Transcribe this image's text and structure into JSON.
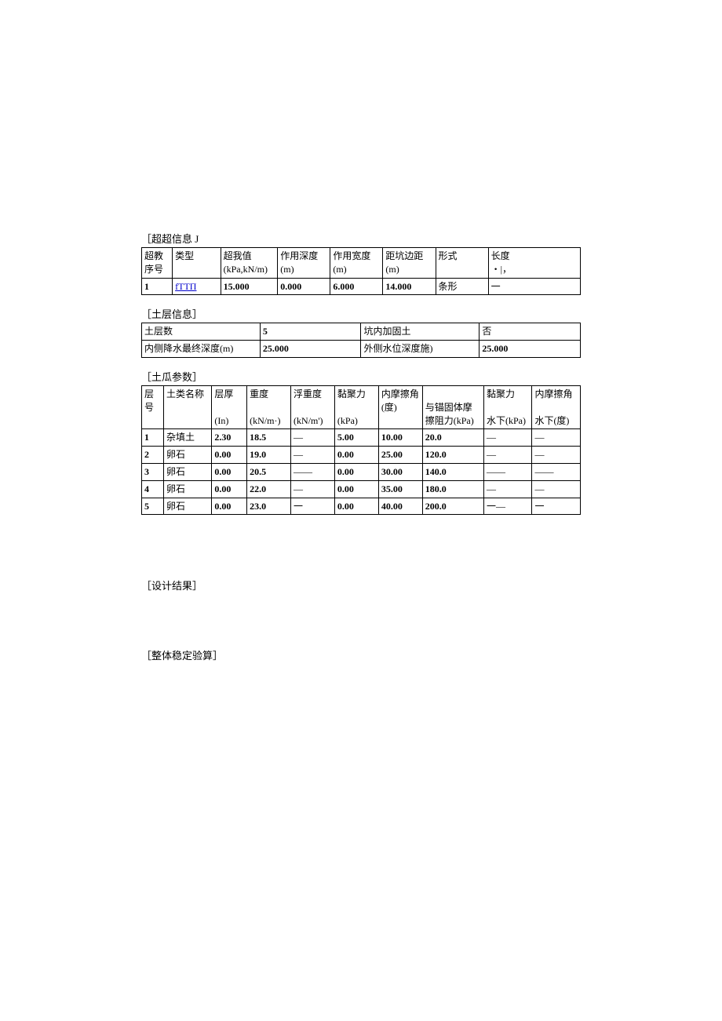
{
  "surcharge": {
    "title": "［超超信息 J",
    "headers": {
      "seq": "超教序号",
      "type": "类型",
      "value": "超我值",
      "value_unit": "(kPa,kN/m)",
      "depth": "作用深度",
      "depth_unit": "(m)",
      "width": "作用宽度",
      "width_unit": "(m)",
      "edge_dist": "距坑边距",
      "edge_dist_unit": "(m)",
      "form": "形式",
      "length": "长度",
      "length_unit": "・|，"
    },
    "row": {
      "seq": "1",
      "type": "fTTП",
      "value": "15.000",
      "depth": "0.000",
      "width": "6.000",
      "edge_dist": "14.000",
      "form": "条形",
      "length": "一"
    }
  },
  "soil_info": {
    "title": "［土层信息］",
    "rows": [
      {
        "k1": "土层数",
        "v1": "5",
        "k2": "坑内加固土",
        "v2": "否"
      },
      {
        "k1": "内侧降水最终深度(m)",
        "v1": "25.000",
        "k2": "外侧水位深度施)",
        "v2": "25.000"
      }
    ]
  },
  "soil_params": {
    "title": "［土瓜参数］",
    "headers": {
      "layer": "层号",
      "name": "土类名称",
      "thick": "层厚",
      "thick_unit": "(In)",
      "weight": "重度",
      "weight_unit": "(kN/m·)",
      "buoy": "浮重度",
      "buoy_unit": "(kN/m')",
      "cohesion": "黏聚力",
      "cohesion_unit": "(kPa)",
      "friction": "内摩擦角",
      "friction_unit": "(度)",
      "anchor": "与锚固体摩擦阻力(kPa)",
      "cohesion_uw": "黏聚力",
      "cohesion_uw_unit": "水下(kPa)",
      "friction_uw": "内摩擦角",
      "friction_uw_unit": "水下(度)"
    },
    "rows": [
      {
        "n": "1",
        "name": "杂填土",
        "thick": "2.30",
        "w": "18.5",
        "buoy": "—",
        "c": "5.00",
        "f": "10.00",
        "a": "20.0",
        "cuw": "—",
        "fuw": "—"
      },
      {
        "n": "2",
        "name": "卵石",
        "thick": "0.00",
        "w": "19.0",
        "buoy": "—",
        "c": "0.00",
        "f": "25.00",
        "a": "120.0",
        "cuw": "—",
        "fuw": "—"
      },
      {
        "n": "3",
        "name": "卵石",
        "thick": "0.00",
        "w": "20.5",
        "buoy": "——",
        "c": "0.00",
        "f": "30.00",
        "a": "140.0",
        "cuw": "——",
        "fuw": "——"
      },
      {
        "n": "4",
        "name": "卵石",
        "thick": "0.00",
        "w": "22.0",
        "buoy": "—",
        "c": "0.00",
        "f": "35.00",
        "a": "180.0",
        "cuw": "—",
        "fuw": "—"
      },
      {
        "n": "5",
        "name": "卵石",
        "thick": "0.00",
        "w": "23.0",
        "buoy": "一",
        "c": "0.00",
        "f": "40.00",
        "a": "200.0",
        "cuw": "一—",
        "fuw": "一"
      }
    ]
  },
  "design_result": "［设计结果］",
  "stability_check": "［整体稳定验算］"
}
